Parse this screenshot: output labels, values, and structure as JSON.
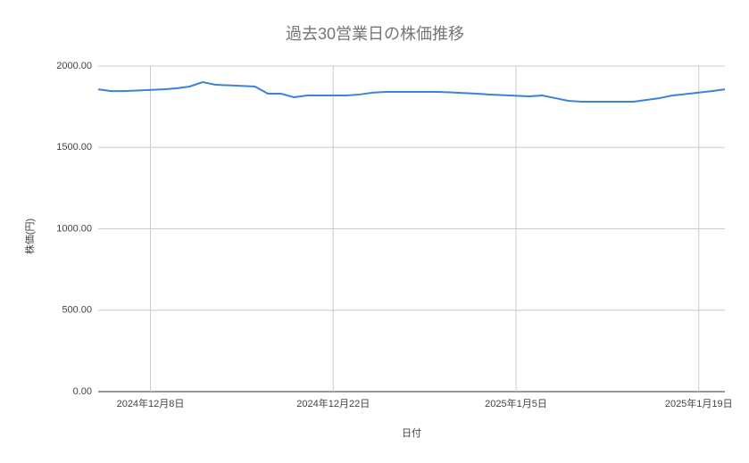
{
  "chart_data": {
    "type": "line",
    "title": "過去30営業日の株価推移",
    "x_label": "日付",
    "y_label": "株価(円)",
    "color": "#3c82d8",
    "grid": true,
    "x": [
      "2024-12-04",
      "2024-12-05",
      "2024-12-06",
      "2024-12-09",
      "2024-12-10",
      "2024-12-11",
      "2024-12-12",
      "2024-12-13",
      "2024-12-16",
      "2024-12-17",
      "2024-12-18",
      "2024-12-19",
      "2024-12-20",
      "2024-12-23",
      "2024-12-24",
      "2024-12-25",
      "2024-12-26",
      "2024-12-27",
      "2024-12-30",
      "2024-12-31",
      "2025-01-02",
      "2025-01-03",
      "2025-01-06",
      "2025-01-07",
      "2025-01-08",
      "2025-01-09",
      "2025-01-10",
      "2025-01-13",
      "2025-01-14",
      "2025-01-15",
      "2025-01-16",
      "2025-01-17",
      "2025-01-20",
      "2025-01-21"
    ],
    "values": [
      1857,
      1846,
      1846,
      1857,
      1863,
      1874,
      1901,
      1885,
      1874,
      1830,
      1830,
      1808,
      1819,
      1819,
      1825,
      1836,
      1841,
      1841,
      1841,
      1838,
      1830,
      1825,
      1814,
      1819,
      1803,
      1786,
      1781,
      1781,
      1781,
      1792,
      1803,
      1819,
      1846,
      1857
    ],
    "xlim": [
      "2024-12-04",
      "2025-01-21"
    ],
    "xticks": [
      {
        "value": "2024-12-08",
        "label": "2024年12月8日"
      },
      {
        "value": "2024-12-22",
        "label": "2024年12月22日"
      },
      {
        "value": "2025-01-05",
        "label": "2025年1月5日"
      },
      {
        "value": "2025-01-19",
        "label": "2025年1月19日"
      }
    ],
    "ylim": [
      0,
      2000
    ],
    "yticks": [
      {
        "value": 0,
        "label": "0.00"
      },
      {
        "value": 500,
        "label": "500.00"
      },
      {
        "value": 1000,
        "label": "1000.00"
      },
      {
        "value": 1500,
        "label": "1500.00"
      },
      {
        "value": 2000,
        "label": "2000.00"
      }
    ]
  }
}
